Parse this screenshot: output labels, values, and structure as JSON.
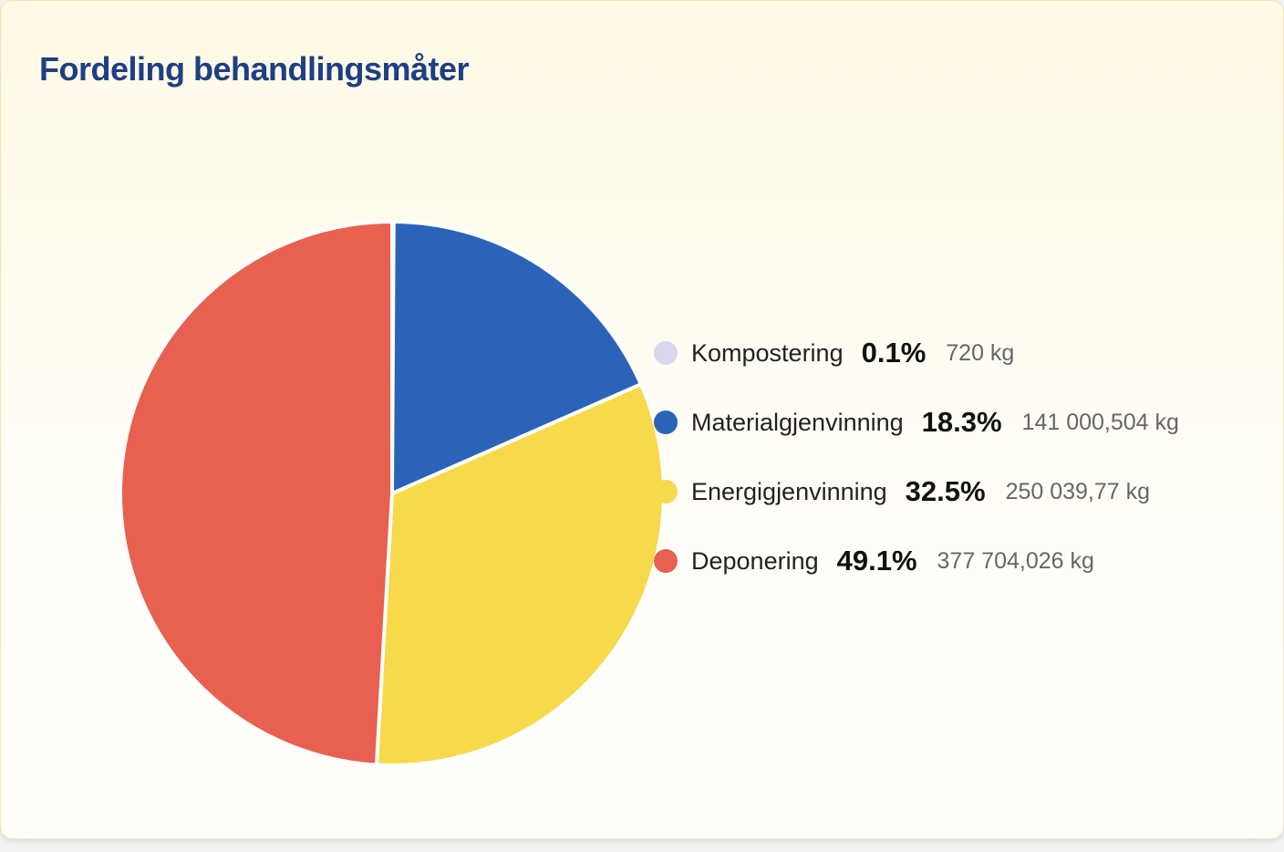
{
  "title": "Fordeling behandlingsmåter",
  "chart_data": {
    "type": "pie",
    "title": "Fordeling behandlingsmåter",
    "legend_position": "right",
    "slices": [
      {
        "label": "Kompostering",
        "percent": "0.1%",
        "percent_value": 0.1,
        "amount": "720 kg",
        "kg": 720,
        "color": "#dcd6ee"
      },
      {
        "label": "Materialgjenvinning",
        "percent": "18.3%",
        "percent_value": 18.3,
        "amount": "141 000,504 kg",
        "kg": 141000.504,
        "color": "#2b63b9"
      },
      {
        "label": "Energigjenvinning",
        "percent": "32.5%",
        "percent_value": 32.5,
        "amount": "250 039,77 kg",
        "kg": 250039.77,
        "color": "#f7da4b"
      },
      {
        "label": "Deponering",
        "percent": "49.1%",
        "percent_value": 49.1,
        "amount": "377 704,026 kg",
        "kg": 377704.026,
        "color": "#e8604f"
      }
    ]
  }
}
